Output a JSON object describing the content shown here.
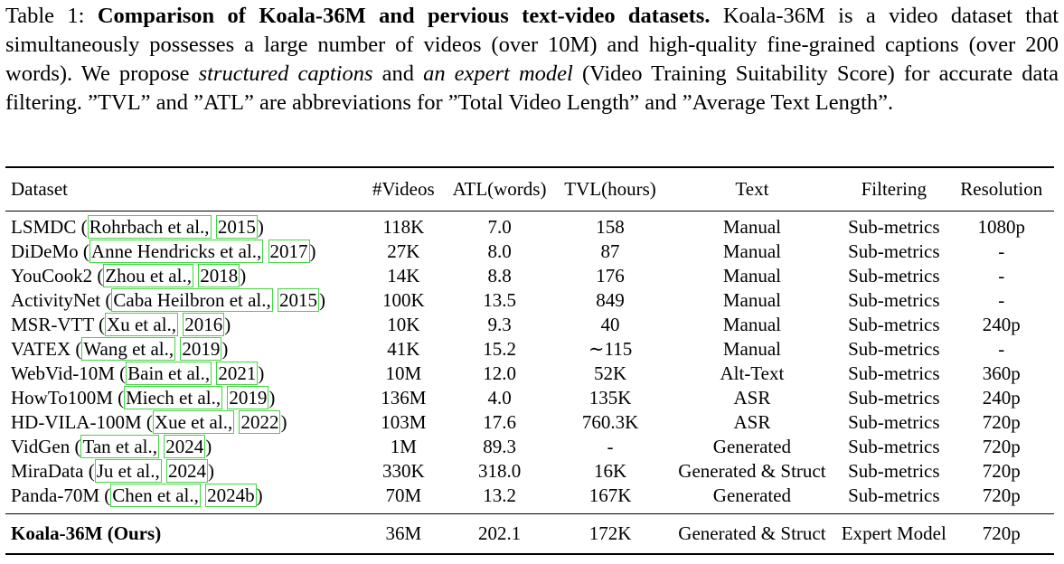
{
  "caption": {
    "label": "Table 1:",
    "title": "Comparison of Koala-36M and pervious text-video datasets.",
    "text1": "Koala-36M is a video dataset that simultaneously possesses a large number of videos (over 10M) and high-quality fine-grained captions (over 200 words). We propose",
    "em1": "structured captions",
    "text2": "and",
    "em2": "an expert model",
    "text3": "(Video Training Suitability Score) for accurate data filtering. ”TVL” and ”ATL” are abbreviations for ”Total Video Length” and ”Average Text Length”."
  },
  "table": {
    "headers": [
      "Dataset",
      "#Videos",
      "ATL(words)",
      "TVL(hours)",
      "Text",
      "Filtering",
      "Resolution"
    ],
    "rows": [
      {
        "name": "LSMDC",
        "cite_a": "Rohrbach et al.,",
        "cite_b": "2015",
        "videos": "118K",
        "atl": "7.0",
        "tvl": "158",
        "text": "Manual",
        "filtering": "Sub-metrics",
        "res": "1080p"
      },
      {
        "name": "DiDeMo",
        "cite_a": "Anne Hendricks et al.,",
        "cite_b": "2017",
        "videos": "27K",
        "atl": "8.0",
        "tvl": "87",
        "text": "Manual",
        "filtering": "Sub-metrics",
        "res": "-"
      },
      {
        "name": "YouCook2",
        "cite_a": "Zhou et al.,",
        "cite_b": "2018",
        "videos": "14K",
        "atl": "8.8",
        "tvl": "176",
        "text": "Manual",
        "filtering": "Sub-metrics",
        "res": "-"
      },
      {
        "name": "ActivityNet",
        "cite_a": "Caba Heilbron et al.,",
        "cite_b": "2015",
        "videos": "100K",
        "atl": "13.5",
        "tvl": "849",
        "text": "Manual",
        "filtering": "Sub-metrics",
        "res": "-"
      },
      {
        "name": "MSR-VTT",
        "cite_a": "Xu et al.,",
        "cite_b": "2016",
        "videos": "10K",
        "atl": "9.3",
        "tvl": "40",
        "text": "Manual",
        "filtering": "Sub-metrics",
        "res": "240p"
      },
      {
        "name": "VATEX",
        "cite_a": "Wang et al.,",
        "cite_b": "2019",
        "videos": "41K",
        "atl": "15.2",
        "tvl": "∼115",
        "text": "Manual",
        "filtering": "Sub-metrics",
        "res": "-"
      },
      {
        "name": "WebVid-10M",
        "cite_a": "Bain et al.,",
        "cite_b": "2021",
        "videos": "10M",
        "atl": "12.0",
        "tvl": "52K",
        "text": "Alt-Text",
        "filtering": "Sub-metrics",
        "res": "360p"
      },
      {
        "name": "HowTo100M",
        "cite_a": "Miech et al.,",
        "cite_b": "2019",
        "videos": "136M",
        "atl": "4.0",
        "tvl": "135K",
        "text": "ASR",
        "filtering": "Sub-metrics",
        "res": "240p"
      },
      {
        "name": "HD-VILA-100M",
        "cite_a": "Xue et al.,",
        "cite_b": "2022",
        "videos": "103M",
        "atl": "17.6",
        "tvl": "760.3K",
        "text": "ASR",
        "filtering": "Sub-metrics",
        "res": "720p"
      },
      {
        "name": "VidGen",
        "cite_a": "Tan et al.,",
        "cite_b": "2024",
        "videos": "1M",
        "atl": "89.3",
        "tvl": "-",
        "text": "Generated",
        "filtering": "Sub-metrics",
        "res": "720p"
      },
      {
        "name": "MiraData",
        "cite_a": "Ju et al.,",
        "cite_b": "2024",
        "videos": "330K",
        "atl": "318.0",
        "tvl": "16K",
        "text": "Generated & Struct",
        "filtering": "Sub-metrics",
        "res": "720p"
      },
      {
        "name": "Panda-70M",
        "cite_a": "Chen et al.,",
        "cite_b": "2024b",
        "videos": "70M",
        "atl": "13.2",
        "tvl": "167K",
        "text": "Generated",
        "filtering": "Sub-metrics",
        "res": "720p"
      }
    ],
    "ours": {
      "name": "Koala-36M (Ours)",
      "videos": "36M",
      "atl": "202.1",
      "tvl": "172K",
      "text": "Generated & Struct",
      "filtering": "Expert Model",
      "res": "720p"
    }
  }
}
